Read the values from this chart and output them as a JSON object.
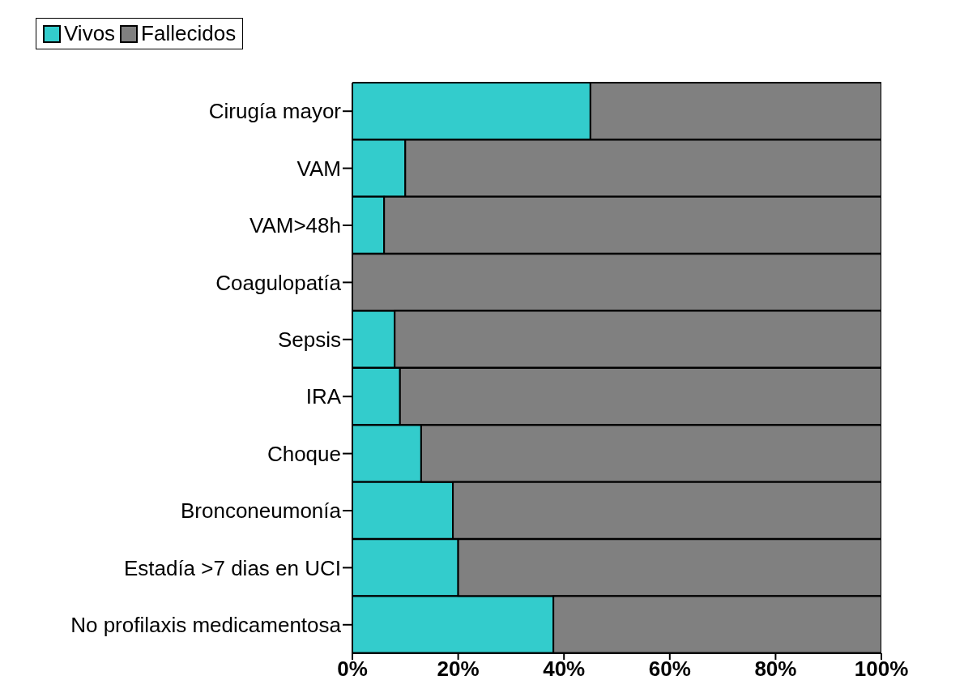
{
  "chart_data": {
    "type": "bar",
    "orientation": "horizontal",
    "stacked": true,
    "categories": [
      "Cirugía mayor",
      "VAM",
      "VAM>48h",
      "Coagulopatía",
      "Sepsis",
      "IRA",
      "Choque",
      "Bronconeumonía",
      "Estadía >7 dias en UCI",
      "No profilaxis medicamentosa"
    ],
    "series": [
      {
        "name": "Vivos",
        "color": "#33cccc",
        "values": [
          45,
          10,
          6,
          0,
          8,
          9,
          13,
          19,
          20,
          38
        ]
      },
      {
        "name": "Fallecidos",
        "color": "#808080",
        "values": [
          55,
          90,
          94,
          100,
          92,
          91,
          87,
          81,
          80,
          62
        ]
      }
    ],
    "xlim": [
      0,
      100
    ],
    "xticks": [
      {
        "value": 0,
        "label": "0%"
      },
      {
        "value": 20,
        "label": "20%"
      },
      {
        "value": 40,
        "label": "40%"
      },
      {
        "value": 60,
        "label": "60%"
      },
      {
        "value": 80,
        "label": "80%"
      },
      {
        "value": 100,
        "label": "100%"
      }
    ],
    "grid": false,
    "legend": "top left"
  }
}
